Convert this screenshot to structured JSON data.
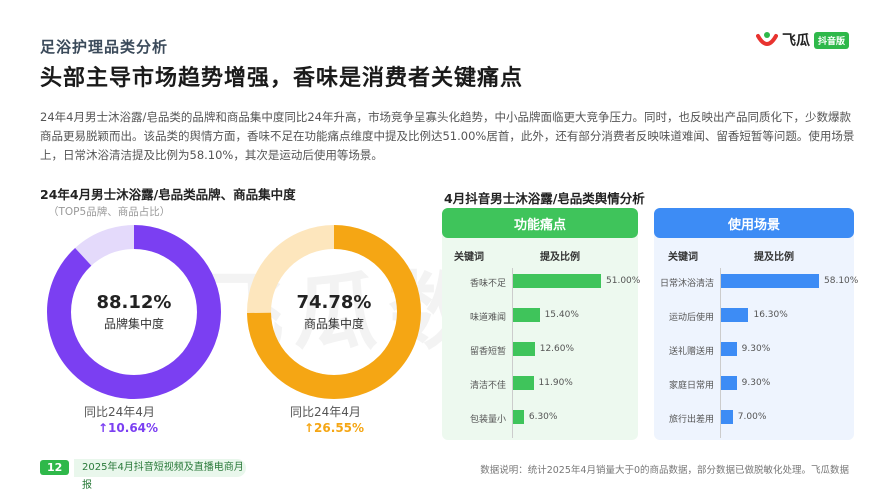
{
  "header": {
    "section_title": "足浴护理品类分析",
    "logo_text": "飞瓜",
    "logo_badge": "抖音版"
  },
  "headline": "头部主导市场趋势增强，香味是消费者关键痛点",
  "summary": "24年4月男士沐浴露/皂品类的品牌和商品集中度同比24年升高，市场竞争呈寡头化趋势，中小品牌面临更大竞争压力。同时，也反映出产品同质化下，少数爆款商品更易脱颖而出。该品类的舆情方面，香味不足在功能痛点维度中提及比例达51.00%居首，此外，还有部分消费者反映味道难闻、留香短暂等问题。使用场景上，日常沐浴清洁提及比例为58.10%，其次是运动后使用等场景。",
  "left": {
    "title": "24年4月男士沐浴露/皂品类品牌、商品集中度",
    "subtitle": "（TOP5品牌、商品占比）",
    "donuts": [
      {
        "value_text": "88.12%",
        "value": 88.12,
        "label": "品牌集中度",
        "yoy_label": "同比24年4月",
        "yoy_value": "↑10.64%",
        "color": "#7b3ff2",
        "track": "#e4dafb",
        "yoy_color": "#7b3ff2"
      },
      {
        "value_text": "74.78%",
        "value": 74.78,
        "label": "商品集中度",
        "yoy_label": "同比24年4月",
        "yoy_value": "↑26.55%",
        "color": "#f5a614",
        "track": "#fde6bd",
        "yoy_color": "#f5a614"
      }
    ]
  },
  "right": {
    "title": "4月抖音男士沐浴露/皂品类舆情分析",
    "panels": [
      {
        "title": "功能痛点",
        "head_color": "#3fc45b",
        "bg_color": "#edf9ef",
        "bar_color": "#3fc45b",
        "col_keyword": "关键词",
        "col_ratio": "提及比例",
        "rows": [
          {
            "keyword": "香味不足",
            "value": 51.0,
            "label": "51.00%"
          },
          {
            "keyword": "味道难闻",
            "value": 15.4,
            "label": "15.40%"
          },
          {
            "keyword": "留香短暂",
            "value": 12.6,
            "label": "12.60%"
          },
          {
            "keyword": "清洁不佳",
            "value": 11.9,
            "label": "11.90%"
          },
          {
            "keyword": "包装量小",
            "value": 6.3,
            "label": "6.30%"
          }
        ]
      },
      {
        "title": "使用场景",
        "head_color": "#3d8cf5",
        "bg_color": "#eef4fe",
        "bar_color": "#3d8cf5",
        "col_keyword": "关键词",
        "col_ratio": "提及比例",
        "rows": [
          {
            "keyword": "日常沐浴清洁",
            "value": 58.1,
            "label": "58.10%"
          },
          {
            "keyword": "运动后使用",
            "value": 16.3,
            "label": "16.30%"
          },
          {
            "keyword": "送礼赠送用",
            "value": 9.3,
            "label": "9.30%"
          },
          {
            "keyword": "家庭日常用",
            "value": 9.3,
            "label": "9.30%"
          },
          {
            "keyword": "旅行出差用",
            "value": 7.0,
            "label": "7.00%"
          }
        ]
      }
    ]
  },
  "watermark": "飞瓜数据",
  "footer": {
    "page": "12",
    "report": "2025年4月抖音短视频及直播电商月报",
    "note": "数据说明：统计2025年4月销量大于0的商品数据，部分数据已做脱敏化处理。飞瓜数据"
  }
}
